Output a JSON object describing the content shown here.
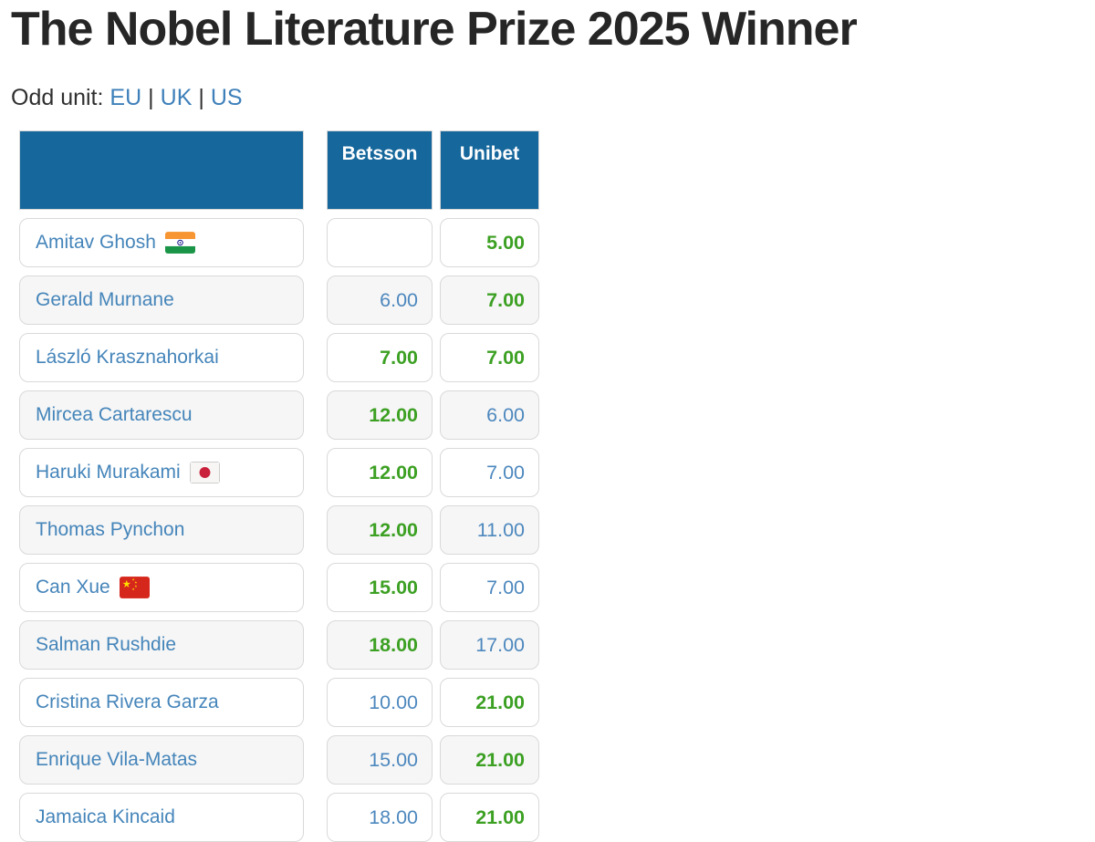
{
  "page": {
    "title": "The Nobel Literature Prize 2025 Winner"
  },
  "odd_unit": {
    "label": "Odd unit:",
    "separator": "|",
    "options": [
      "EU",
      "UK",
      "US"
    ]
  },
  "table": {
    "columns": [
      {
        "label": ""
      },
      {
        "label": "Betsson"
      },
      {
        "label": "Unibet"
      }
    ],
    "rows": [
      {
        "name": "Amitav Ghosh",
        "flag": "india",
        "odds": [
          {
            "value": "",
            "best": false
          },
          {
            "value": "5.00",
            "best": true
          }
        ]
      },
      {
        "name": "Gerald Murnane",
        "flag": null,
        "odds": [
          {
            "value": "6.00",
            "best": false
          },
          {
            "value": "7.00",
            "best": true
          }
        ]
      },
      {
        "name": "László Krasznahorkai",
        "flag": null,
        "odds": [
          {
            "value": "7.00",
            "best": true
          },
          {
            "value": "7.00",
            "best": true
          }
        ]
      },
      {
        "name": "Mircea Cartarescu",
        "flag": null,
        "odds": [
          {
            "value": "12.00",
            "best": true
          },
          {
            "value": "6.00",
            "best": false
          }
        ]
      },
      {
        "name": "Haruki Murakami",
        "flag": "japan",
        "odds": [
          {
            "value": "12.00",
            "best": true
          },
          {
            "value": "7.00",
            "best": false
          }
        ]
      },
      {
        "name": "Thomas Pynchon",
        "flag": null,
        "odds": [
          {
            "value": "12.00",
            "best": true
          },
          {
            "value": "11.00",
            "best": false
          }
        ]
      },
      {
        "name": "Can Xue",
        "flag": "china",
        "odds": [
          {
            "value": "15.00",
            "best": true
          },
          {
            "value": "7.00",
            "best": false
          }
        ]
      },
      {
        "name": "Salman Rushdie",
        "flag": null,
        "odds": [
          {
            "value": "18.00",
            "best": true
          },
          {
            "value": "17.00",
            "best": false
          }
        ]
      },
      {
        "name": "Cristina Rivera Garza",
        "flag": null,
        "odds": [
          {
            "value": "10.00",
            "best": false
          },
          {
            "value": "21.00",
            "best": true
          }
        ]
      },
      {
        "name": "Enrique Vila-Matas",
        "flag": null,
        "odds": [
          {
            "value": "15.00",
            "best": false
          },
          {
            "value": "21.00",
            "best": true
          }
        ]
      },
      {
        "name": "Jamaica Kincaid",
        "flag": null,
        "odds": [
          {
            "value": "18.00",
            "best": false
          },
          {
            "value": "21.00",
            "best": true
          }
        ]
      }
    ]
  },
  "colors": {
    "header_bg": "#16679c",
    "header_text": "#ffffff",
    "best_green": "#3ca023",
    "odds_blue": "#4d88be",
    "author_link_blue": "#4585ba",
    "link_blue": "#3e80ba",
    "title_color": "#262626",
    "text_color": "#2f2f2f",
    "alt_row_bg": "#f6f6f6"
  }
}
